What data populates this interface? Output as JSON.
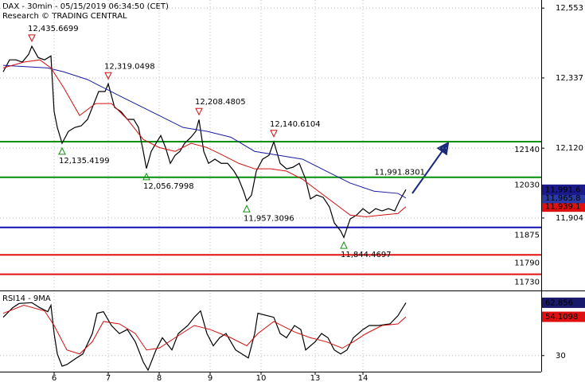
{
  "chart_data": [
    {
      "type": "line",
      "title": "DAX - 30min - 05/15/2019 06:34:50 (CET)",
      "subtitle": "Research © TRADING CENTRAL",
      "xlim": [
        0,
        170
      ],
      "ylim": [
        11680,
        12578
      ],
      "yticks": [
        {
          "value": 12553,
          "label": "12,553"
        },
        {
          "value": 12337,
          "label": "12,337"
        },
        {
          "value": 12120,
          "label": "12,120"
        },
        {
          "value": 11904,
          "label": "11,904"
        }
      ],
      "grid": true,
      "series": [
        {
          "color": "#000000",
          "x": [
            1,
            3,
            5,
            7,
            9,
            10,
            12,
            14,
            16,
            17,
            18,
            19.5,
            21.5,
            23.5,
            25.5,
            27.5,
            29.5,
            31,
            33,
            34,
            36,
            38,
            40,
            42,
            43.5,
            45,
            46,
            47.5,
            49,
            50.5,
            52,
            53.5,
            55,
            56.5,
            58,
            60,
            61.5,
            62.5,
            64,
            65.5,
            67.5,
            69.5,
            71.5,
            73.5,
            75,
            76.5,
            77.5,
            79,
            80.5,
            82.5,
            84.5,
            86,
            88,
            90,
            92,
            94,
            96,
            97.5,
            99.5,
            101.5,
            103.5,
            105,
            107,
            108,
            110,
            112,
            114,
            116,
            118,
            120,
            122,
            124,
            125.5,
            127.5
          ],
          "values": [
            12356,
            12393,
            12393,
            12386,
            12410,
            12435,
            12400,
            12393,
            12405,
            12233,
            12184,
            12135,
            12172,
            12184,
            12189,
            12209,
            12258,
            12295,
            12295,
            12319,
            12246,
            12233,
            12209,
            12209,
            12184,
            12110,
            12057,
            12110,
            12135,
            12159,
            12122,
            12073,
            12098,
            12110,
            12135,
            12154,
            12172,
            12208,
            12110,
            12073,
            12086,
            12073,
            12073,
            12049,
            12024,
            11987,
            11957,
            11975,
            12049,
            12086,
            12098,
            12140,
            12073,
            12056,
            12061,
            12073,
            12024,
            11963,
            11975,
            11968,
            11938,
            11889,
            11864,
            11844,
            11901,
            11913,
            11933,
            11918,
            11933,
            11926,
            11933,
            11926,
            11958,
            11992
          ]
        },
        {
          "color": "#1a1aa0",
          "x": [
            1,
            15,
            20,
            27.5,
            37.5,
            47.5,
            57.5,
            65,
            72.5,
            80,
            87.5,
            95,
            102.5,
            110,
            117.5,
            125,
            127.5
          ],
          "values": [
            12376,
            12368,
            12356,
            12332,
            12282,
            12233,
            12184,
            12172,
            12154,
            12110,
            12098,
            12086,
            12049,
            12012,
            11987,
            11980,
            11966
          ]
        },
        {
          "color": "#d01010",
          "x": [
            1,
            7.5,
            12.5,
            16,
            20,
            25,
            30,
            35,
            40,
            45,
            50,
            55,
            60,
            65,
            70,
            75,
            80,
            85,
            90,
            95,
            100,
            105,
            110,
            115,
            120,
            125,
            127.5
          ],
          "values": [
            12368,
            12386,
            12393,
            12368,
            12307,
            12221,
            12258,
            12258,
            12209,
            12147,
            12122,
            12110,
            12135,
            12122,
            12098,
            12073,
            12056,
            12056,
            12049,
            12024,
            11987,
            11950,
            11913,
            11908,
            11913,
            11918,
            11939
          ]
        }
      ],
      "levels": [
        {
          "value": 12140,
          "color": "#00900a"
        },
        {
          "value": 12030,
          "color": "#00900a"
        },
        {
          "value": 11875,
          "color": "#1010b0"
        },
        {
          "value": 11790,
          "color": "#e01010"
        },
        {
          "value": 11730,
          "color": "#e01010"
        }
      ],
      "peaks": [
        {
          "x": 10,
          "value": 12435.6699,
          "label": "12,435.6699"
        },
        {
          "x": 34,
          "value": 12319.0498,
          "label": "12,319.0498"
        },
        {
          "x": 62.5,
          "value": 12208.4805,
          "label": "12,208.4805"
        },
        {
          "x": 86,
          "value": 12140.6104,
          "label": "12,140.6104"
        }
      ],
      "troughs": [
        {
          "x": 19.5,
          "value": 12135.4199,
          "label": "12,135.4199"
        },
        {
          "x": 46,
          "value": 12056.7998,
          "label": "12,056.7998"
        },
        {
          "x": 77.5,
          "value": 11957.3096,
          "label": "11,957.3096"
        },
        {
          "x": 108,
          "value": 11844.4697,
          "label": "11,844.4697"
        }
      ],
      "last_label": {
        "x": 127.5,
        "value": 11991.8301,
        "label": "11,991.8301"
      },
      "tags": [
        {
          "value": 11991.6,
          "label": "11,991.6",
          "color": "#1a1a8c"
        },
        {
          "value": 11965.8,
          "label": "11,965.8",
          "color": "#2a3aa8"
        },
        {
          "value": 11939.1,
          "label": "11,939.1",
          "color": "#e01010"
        }
      ]
    },
    {
      "type": "line",
      "title": "RSI14 - 9MA",
      "xlim": [
        0,
        170
      ],
      "ylim": [
        20,
        69
      ],
      "yticks": [
        30
      ],
      "xticks": [
        {
          "value": 17,
          "label": "6"
        },
        {
          "value": 34,
          "label": "7"
        },
        {
          "value": 50,
          "label": "8"
        },
        {
          "value": 66,
          "label": "9"
        },
        {
          "value": 82,
          "label": "10"
        },
        {
          "value": 99,
          "label": "13"
        },
        {
          "value": 114,
          "label": "14"
        }
      ],
      "grid": true,
      "series": [
        {
          "color": "#000000",
          "x": [
            1,
            4,
            6,
            10,
            12.5,
            15,
            16,
            17,
            18,
            19.5,
            21,
            24,
            26,
            29,
            30.5,
            32.5,
            35,
            37.5,
            40,
            42.5,
            45,
            46.5,
            49,
            51,
            54,
            56,
            59,
            61,
            63,
            65,
            67,
            69,
            71,
            74,
            76,
            78,
            80,
            81,
            84,
            86,
            88,
            90,
            92.5,
            94.5,
            96,
            99,
            101,
            103,
            105,
            107,
            109,
            111,
            114,
            116,
            119,
            122.5,
            125,
            127.5
          ],
          "values": [
            53.8,
            59.8,
            62.4,
            62.9,
            59.8,
            57.3,
            61.3,
            43.7,
            31.0,
            23.4,
            24.4,
            28.5,
            31.0,
            43.7,
            56.3,
            57.3,
            48.7,
            43.7,
            46.2,
            38.6,
            26.0,
            20.9,
            33.5,
            41.1,
            33.5,
            43.7,
            48.7,
            53.8,
            57.8,
            43.7,
            36.1,
            41.1,
            43.7,
            33.5,
            31.0,
            28.5,
            43.7,
            56.3,
            54.8,
            53.8,
            43.7,
            41.1,
            48.7,
            46.2,
            33.5,
            38.6,
            43.7,
            41.1,
            33.5,
            31.0,
            33.5,
            41.1,
            46.2,
            48.7,
            48.7,
            49.7,
            54.8,
            62.856
          ]
        },
        {
          "color": "#d01010",
          "x": [
            1,
            7.5,
            14,
            17,
            21,
            25,
            29,
            32.5,
            37.5,
            42.5,
            46,
            50,
            55,
            61,
            66,
            72.5,
            77.5,
            81,
            86,
            92.5,
            97.5,
            102.5,
            107.5,
            111,
            115,
            120,
            125,
            127.5
          ],
          "values": [
            56.3,
            61.3,
            57.8,
            48.7,
            33.5,
            31.0,
            38.6,
            51.2,
            49.7,
            43.7,
            33.5,
            34.6,
            41.1,
            48.7,
            46.2,
            41.1,
            36.1,
            43.7,
            51.2,
            44.7,
            41.1,
            38.6,
            34.6,
            38.6,
            43.7,
            48.7,
            49.7,
            54.1098
          ]
        }
      ],
      "tags": [
        {
          "value": 62.856,
          "label": "62.856",
          "color": "#1a1a6c"
        },
        {
          "value": 54.1098,
          "label": "54.1098",
          "color": "#e01010"
        }
      ]
    }
  ]
}
